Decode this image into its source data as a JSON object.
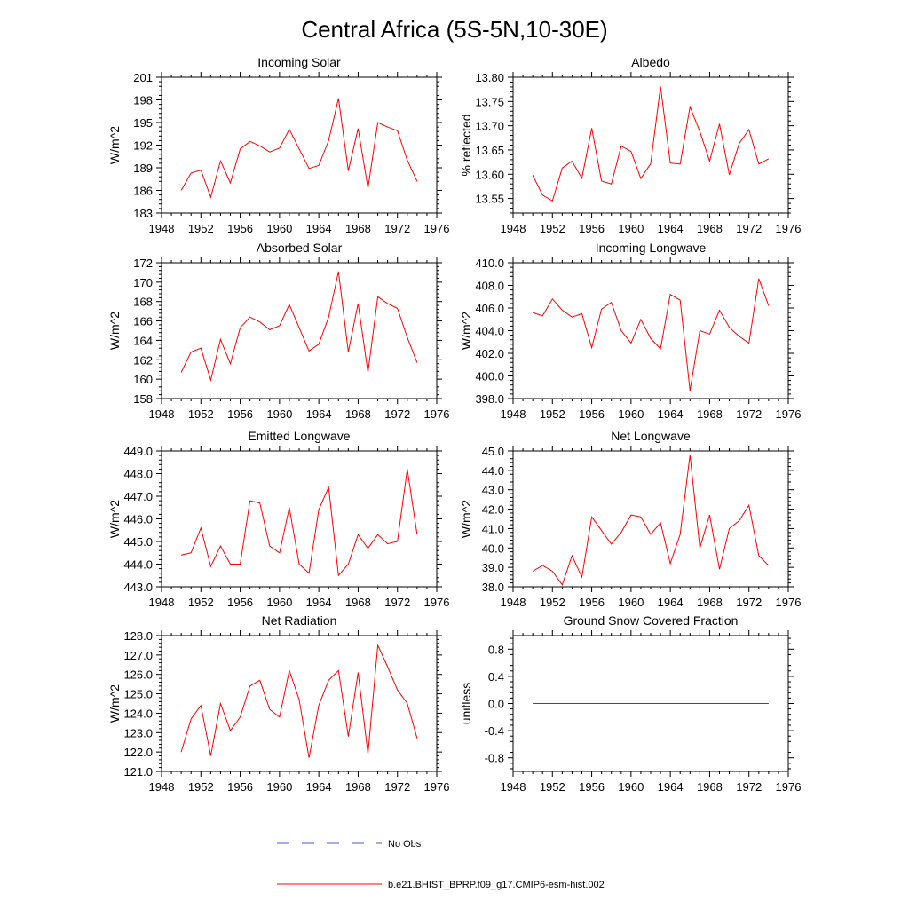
{
  "title": "Central Africa (5S-5N,10-30E)",
  "legend": [
    {
      "label": "No Obs",
      "color": "#4a5bd6",
      "dash": true
    },
    {
      "label": "b.e21.BHIST_BPRP.f09_g17.CMIP6-esm-hist.002",
      "color": "#ff0000",
      "dash": false
    }
  ],
  "chart_data": [
    {
      "type": "line",
      "title": "Incoming Solar",
      "ylabel": "W/m^2",
      "xlim": [
        1948,
        1976
      ],
      "xticks": [
        1948,
        1952,
        1956,
        1960,
        1964,
        1968,
        1972,
        1976
      ],
      "ylim": [
        183,
        201
      ],
      "yticks": [
        183,
        186,
        189,
        192,
        195,
        198,
        201
      ],
      "ytick_labels": [
        "183",
        "186",
        "189",
        "192",
        "195",
        "198",
        "201"
      ],
      "x": [
        1950,
        1951,
        1952,
        1953,
        1954,
        1955,
        1956,
        1957,
        1958,
        1959,
        1960,
        1961,
        1962,
        1963,
        1964,
        1965,
        1966,
        1967,
        1968,
        1969,
        1970,
        1971,
        1972,
        1973,
        1974
      ],
      "series": [
        {
          "color": "#ff0000",
          "values": [
            186.0,
            188.3,
            188.7,
            185.1,
            189.9,
            187.0,
            191.5,
            192.5,
            191.9,
            191.1,
            191.6,
            194.1,
            191.5,
            188.9,
            189.3,
            192.6,
            198.2,
            188.6,
            194.2,
            186.3,
            195.0,
            194.4,
            193.9,
            190.0,
            187.2
          ]
        }
      ]
    },
    {
      "type": "line",
      "title": "Albedo",
      "ylabel": "% reflected",
      "xlim": [
        1948,
        1976
      ],
      "xticks": [
        1948,
        1952,
        1956,
        1960,
        1964,
        1968,
        1972,
        1976
      ],
      "ylim": [
        13.52,
        13.8
      ],
      "yticks": [
        13.55,
        13.6,
        13.65,
        13.7,
        13.75,
        13.8
      ],
      "ytick_labels": [
        "13.55",
        "13.60",
        "13.65",
        "13.70",
        "13.75",
        "13.80"
      ],
      "x": [
        1950,
        1951,
        1952,
        1953,
        1954,
        1955,
        1956,
        1957,
        1958,
        1959,
        1960,
        1961,
        1962,
        1963,
        1964,
        1965,
        1966,
        1967,
        1968,
        1969,
        1970,
        1971,
        1972,
        1973,
        1974
      ],
      "series": [
        {
          "color": "#ff0000",
          "values": [
            13.598,
            13.557,
            13.545,
            13.613,
            13.627,
            13.592,
            13.695,
            13.586,
            13.58,
            13.658,
            13.647,
            13.591,
            13.622,
            13.781,
            13.623,
            13.621,
            13.739,
            13.688,
            13.627,
            13.704,
            13.599,
            13.663,
            13.692,
            13.621,
            13.632
          ]
        }
      ]
    },
    {
      "type": "line",
      "title": "Absorbed Solar",
      "ylabel": "W/m^2",
      "xlim": [
        1948,
        1976
      ],
      "xticks": [
        1948,
        1952,
        1956,
        1960,
        1964,
        1968,
        1972,
        1976
      ],
      "ylim": [
        158,
        172
      ],
      "yticks": [
        158,
        160,
        162,
        164,
        166,
        168,
        170,
        172
      ],
      "ytick_labels": [
        "158",
        "160",
        "162",
        "164",
        "166",
        "168",
        "170",
        "172"
      ],
      "x": [
        1950,
        1951,
        1952,
        1953,
        1954,
        1955,
        1956,
        1957,
        1958,
        1959,
        1960,
        1961,
        1962,
        1963,
        1964,
        1965,
        1966,
        1967,
        1968,
        1969,
        1970,
        1971,
        1972,
        1973,
        1974
      ],
      "series": [
        {
          "color": "#ff0000",
          "values": [
            160.7,
            162.8,
            163.2,
            159.9,
            164.1,
            161.6,
            165.3,
            166.4,
            165.9,
            165.1,
            165.5,
            167.7,
            165.3,
            162.9,
            163.6,
            166.4,
            171.1,
            162.8,
            167.8,
            160.7,
            168.5,
            167.8,
            167.3,
            164.3,
            161.7
          ]
        }
      ]
    },
    {
      "type": "line",
      "title": "Incoming Longwave",
      "ylabel": "W/m^2",
      "xlim": [
        1948,
        1976
      ],
      "xticks": [
        1948,
        1952,
        1956,
        1960,
        1964,
        1968,
        1972,
        1976
      ],
      "ylim": [
        398,
        410
      ],
      "yticks": [
        398,
        400,
        402,
        404,
        406,
        408,
        410
      ],
      "ytick_labels": [
        "398.0",
        "400.0",
        "402.0",
        "404.0",
        "406.0",
        "408.0",
        "410.0"
      ],
      "x": [
        1950,
        1951,
        1952,
        1953,
        1954,
        1955,
        1956,
        1957,
        1958,
        1959,
        1960,
        1961,
        1962,
        1963,
        1964,
        1965,
        1966,
        1967,
        1968,
        1969,
        1970,
        1971,
        1972,
        1973,
        1974
      ],
      "series": [
        {
          "color": "#ff0000",
          "values": [
            405.6,
            405.3,
            406.8,
            405.8,
            405.2,
            405.5,
            402.5,
            405.9,
            406.5,
            404.0,
            402.9,
            405.0,
            403.3,
            402.4,
            407.2,
            406.7,
            398.7,
            404.0,
            403.7,
            405.8,
            404.3,
            403.5,
            402.9,
            408.6,
            406.2
          ]
        }
      ]
    },
    {
      "type": "line",
      "title": "Emitted Longwave",
      "ylabel": "W/m^2",
      "xlim": [
        1948,
        1976
      ],
      "xticks": [
        1948,
        1952,
        1956,
        1960,
        1964,
        1968,
        1972,
        1976
      ],
      "ylim": [
        443,
        449
      ],
      "yticks": [
        443,
        444,
        445,
        446,
        447,
        448,
        449
      ],
      "ytick_labels": [
        "443.0",
        "444.0",
        "445.0",
        "446.0",
        "447.0",
        "448.0",
        "449.0"
      ],
      "x": [
        1950,
        1951,
        1952,
        1953,
        1954,
        1955,
        1956,
        1957,
        1958,
        1959,
        1960,
        1961,
        1962,
        1963,
        1964,
        1965,
        1966,
        1967,
        1968,
        1969,
        1970,
        1971,
        1972,
        1973,
        1974
      ],
      "series": [
        {
          "color": "#ff0000",
          "values": [
            444.4,
            444.5,
            445.6,
            443.9,
            444.8,
            444.0,
            444.0,
            446.8,
            446.7,
            444.8,
            444.5,
            446.5,
            444.0,
            443.6,
            446.4,
            447.4,
            443.5,
            444.0,
            445.3,
            444.7,
            445.3,
            444.9,
            445.0,
            448.2,
            445.3
          ]
        }
      ]
    },
    {
      "type": "line",
      "title": "Net Longwave",
      "ylabel": "W/m^2",
      "xlim": [
        1948,
        1976
      ],
      "xticks": [
        1948,
        1952,
        1956,
        1960,
        1964,
        1968,
        1972,
        1976
      ],
      "ylim": [
        38,
        45
      ],
      "yticks": [
        38,
        39,
        40,
        41,
        42,
        43,
        44,
        45
      ],
      "ytick_labels": [
        "38.0",
        "39.0",
        "40.0",
        "41.0",
        "42.0",
        "43.0",
        "44.0",
        "45.0"
      ],
      "x": [
        1950,
        1951,
        1952,
        1953,
        1954,
        1955,
        1956,
        1957,
        1958,
        1959,
        1960,
        1961,
        1962,
        1963,
        1964,
        1965,
        1966,
        1967,
        1968,
        1969,
        1970,
        1971,
        1972,
        1973,
        1974
      ],
      "series": [
        {
          "color": "#ff0000",
          "values": [
            38.8,
            39.1,
            38.8,
            38.1,
            39.6,
            38.5,
            41.6,
            40.9,
            40.2,
            40.8,
            41.7,
            41.6,
            40.7,
            41.3,
            39.2,
            40.7,
            44.8,
            40.0,
            41.7,
            38.9,
            41.0,
            41.4,
            42.2,
            39.6,
            39.1
          ]
        }
      ]
    },
    {
      "type": "line",
      "title": "Net Radiation",
      "ylabel": "W/m^2",
      "xlim": [
        1948,
        1976
      ],
      "xticks": [
        1948,
        1952,
        1956,
        1960,
        1964,
        1968,
        1972,
        1976
      ],
      "ylim": [
        121,
        128
      ],
      "yticks": [
        121,
        122,
        123,
        124,
        125,
        126,
        127,
        128
      ],
      "ytick_labels": [
        "121.0",
        "122.0",
        "123.0",
        "124.0",
        "125.0",
        "126.0",
        "127.0",
        "128.0"
      ],
      "x": [
        1950,
        1951,
        1952,
        1953,
        1954,
        1955,
        1956,
        1957,
        1958,
        1959,
        1960,
        1961,
        1962,
        1963,
        1964,
        1965,
        1966,
        1967,
        1968,
        1969,
        1970,
        1971,
        1972,
        1973,
        1974
      ],
      "series": [
        {
          "color": "#ff0000",
          "values": [
            122.0,
            123.7,
            124.4,
            121.8,
            124.5,
            123.1,
            123.8,
            125.4,
            125.7,
            124.2,
            123.8,
            126.2,
            124.7,
            121.7,
            124.4,
            125.7,
            126.2,
            122.8,
            126.1,
            121.9,
            127.5,
            126.4,
            125.2,
            124.5,
            122.7
          ]
        }
      ]
    },
    {
      "type": "line",
      "title": "Ground Snow Covered Fraction",
      "ylabel": "unitless",
      "xlim": [
        1948,
        1976
      ],
      "xticks": [
        1948,
        1952,
        1956,
        1960,
        1964,
        1968,
        1972,
        1976
      ],
      "ylim": [
        -1.0,
        1.0
      ],
      "yticks": [
        -0.8,
        -0.4,
        0.0,
        0.4,
        0.8
      ],
      "ytick_labels": [
        "-0.8",
        "-0.4",
        "0.0",
        "0.4",
        "0.8"
      ],
      "x": [
        1950,
        1951,
        1952,
        1953,
        1954,
        1955,
        1956,
        1957,
        1958,
        1959,
        1960,
        1961,
        1962,
        1963,
        1964,
        1965,
        1966,
        1967,
        1968,
        1969,
        1970,
        1971,
        1972,
        1973,
        1974
      ],
      "series": [
        {
          "color": "#ff0000",
          "values": [
            0,
            0,
            0,
            0,
            0,
            0,
            0,
            0,
            0,
            0,
            0,
            0,
            0,
            0,
            0,
            0,
            0,
            0,
            0,
            0,
            0,
            0,
            0,
            0,
            0
          ]
        }
      ]
    }
  ]
}
